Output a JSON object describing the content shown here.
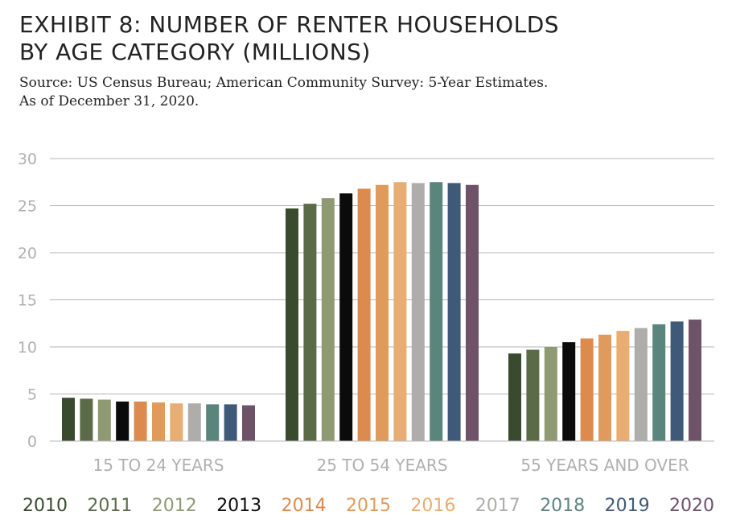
{
  "title_line1": "EXHIBIT 8: NUMBER OF RENTER HOUSEHOLDS",
  "title_line2": "BY AGE CATEGORY (MILLIONS)",
  "subtitle_line1": "Source: US Census Bureau; American Community Survey: 5-Year Estimates.",
  "subtitle_line2": "As of December 31, 2020.",
  "colors": {
    "grid": "#b5b5b5",
    "axis_text": "#b0b0b0",
    "2010": "#3a4a2e",
    "2011": "#5c6b47",
    "2012": "#8f9a72",
    "2013": "#0b0b0b",
    "2014": "#dc8a4e",
    "2015": "#e09a5c",
    "2016": "#e8ad72",
    "2017": "#aeadab",
    "2018": "#5a857d",
    "2019": "#3f5a78",
    "2020": "#6e5268"
  },
  "chart_data": {
    "type": "bar",
    "categories": [
      "15 TO 24 YEARS",
      "25 TO 54 YEARS",
      "55 YEARS AND OVER"
    ],
    "ylim": [
      0,
      30
    ],
    "yticks": [
      "0",
      "5",
      "10",
      "15",
      "20",
      "25",
      "30"
    ],
    "grid": true,
    "legend_position": "bottom",
    "series": [
      {
        "name": "2010",
        "values": [
          4.6,
          24.7,
          9.3
        ]
      },
      {
        "name": "2011",
        "values": [
          4.5,
          25.2,
          9.7
        ]
      },
      {
        "name": "2012",
        "values": [
          4.4,
          25.8,
          10.0
        ]
      },
      {
        "name": "2013",
        "values": [
          4.2,
          26.3,
          10.5
        ]
      },
      {
        "name": "2014",
        "values": [
          4.2,
          26.8,
          10.9
        ]
      },
      {
        "name": "2015",
        "values": [
          4.1,
          27.2,
          11.3
        ]
      },
      {
        "name": "2016",
        "values": [
          4.0,
          27.5,
          11.7
        ]
      },
      {
        "name": "2017",
        "values": [
          4.0,
          27.4,
          12.0
        ]
      },
      {
        "name": "2018",
        "values": [
          3.9,
          27.5,
          12.4
        ]
      },
      {
        "name": "2019",
        "values": [
          3.9,
          27.4,
          12.7
        ]
      },
      {
        "name": "2020",
        "values": [
          3.8,
          27.2,
          12.9
        ]
      }
    ]
  }
}
